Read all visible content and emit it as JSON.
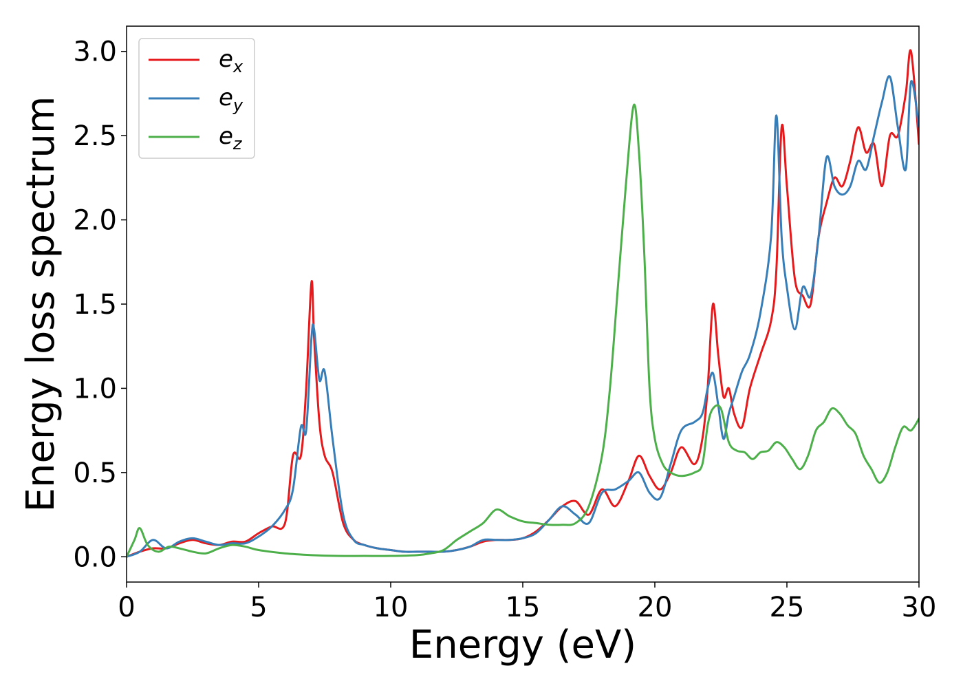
{
  "chart_data": {
    "type": "line",
    "xlabel": "Energy (eV)",
    "ylabel": "Energy loss spectrum",
    "xlim": [
      0,
      30
    ],
    "ylim": [
      -0.15,
      3.15
    ],
    "xticks": [
      0,
      5,
      10,
      15,
      20,
      25,
      30
    ],
    "xtick_labels": [
      "0",
      "5",
      "10",
      "15",
      "20",
      "25",
      "30"
    ],
    "yticks": [
      0.0,
      0.5,
      1.0,
      1.5,
      2.0,
      2.5,
      3.0
    ],
    "ytick_labels": [
      "0.0",
      "0.5",
      "1.0",
      "1.5",
      "2.0",
      "2.5",
      "3.0"
    ],
    "grid": false,
    "legend_position": "top-left",
    "series": [
      {
        "name": "e_x",
        "label_base": "e",
        "label_sub": "x",
        "color": "#e41a1c",
        "x": [
          0,
          0.5,
          1,
          1.5,
          2,
          2.5,
          3,
          3.5,
          4,
          4.5,
          5,
          5.5,
          6,
          6.3,
          6.6,
          6.8,
          7,
          7.1,
          7.3,
          7.5,
          7.8,
          8.2,
          8.6,
          9,
          9.5,
          10,
          10.5,
          11,
          11.5,
          12,
          12.5,
          13,
          13.5,
          14,
          14.5,
          15,
          15.5,
          16,
          16.5,
          17,
          17.5,
          18,
          18.5,
          19,
          19.4,
          19.8,
          20.2,
          20.6,
          21,
          21.5,
          21.8,
          22,
          22.2,
          22.4,
          22.6,
          22.8,
          23,
          23.3,
          23.6,
          24,
          24.4,
          24.6,
          24.8,
          25,
          25.3,
          25.6,
          25.9,
          26.2,
          26.5,
          26.8,
          27.1,
          27.4,
          27.7,
          28,
          28.3,
          28.6,
          28.9,
          29.2,
          29.5,
          29.7,
          30
        ],
        "y": [
          0,
          0.03,
          0.05,
          0.05,
          0.08,
          0.1,
          0.08,
          0.07,
          0.09,
          0.09,
          0.14,
          0.18,
          0.2,
          0.6,
          0.6,
          1.0,
          1.63,
          1.3,
          0.8,
          0.6,
          0.5,
          0.2,
          0.1,
          0.07,
          0.05,
          0.04,
          0.03,
          0.03,
          0.03,
          0.03,
          0.04,
          0.06,
          0.09,
          0.1,
          0.1,
          0.11,
          0.15,
          0.22,
          0.3,
          0.33,
          0.25,
          0.4,
          0.3,
          0.45,
          0.6,
          0.48,
          0.4,
          0.5,
          0.65,
          0.55,
          0.7,
          1.0,
          1.5,
          1.2,
          0.95,
          1.0,
          0.85,
          0.77,
          1.0,
          1.2,
          1.4,
          1.7,
          2.55,
          2.2,
          1.65,
          1.55,
          1.5,
          1.9,
          2.1,
          2.25,
          2.2,
          2.35,
          2.55,
          2.4,
          2.45,
          2.2,
          2.5,
          2.5,
          2.75,
          3.0,
          2.45
        ]
      },
      {
        "name": "e_y",
        "label_base": "e",
        "label_sub": "y",
        "color": "#377eb8",
        "x": [
          0,
          0.5,
          1,
          1.5,
          2,
          2.5,
          3,
          3.5,
          4,
          4.5,
          5,
          5.5,
          6,
          6.3,
          6.6,
          6.8,
          7,
          7.1,
          7.3,
          7.5,
          7.8,
          8.2,
          8.6,
          9,
          9.5,
          10,
          10.5,
          11,
          11.5,
          12,
          12.5,
          13,
          13.5,
          14,
          14.5,
          15,
          15.5,
          16,
          16.5,
          17,
          17.5,
          18,
          18.5,
          19,
          19.4,
          19.8,
          20.2,
          20.6,
          21,
          21.5,
          21.8,
          22,
          22.2,
          22.4,
          22.6,
          22.8,
          23,
          23.3,
          23.6,
          24,
          24.4,
          24.6,
          24.8,
          25,
          25.3,
          25.6,
          25.9,
          26.2,
          26.5,
          26.8,
          27.1,
          27.4,
          27.7,
          28,
          28.3,
          28.6,
          28.9,
          29.2,
          29.5,
          29.7,
          30
        ],
        "y": [
          0,
          0.03,
          0.1,
          0.05,
          0.09,
          0.11,
          0.09,
          0.07,
          0.08,
          0.08,
          0.12,
          0.18,
          0.28,
          0.4,
          0.77,
          0.75,
          1.3,
          1.35,
          1.05,
          1.1,
          0.7,
          0.25,
          0.1,
          0.07,
          0.05,
          0.04,
          0.03,
          0.03,
          0.03,
          0.03,
          0.04,
          0.06,
          0.1,
          0.1,
          0.1,
          0.11,
          0.14,
          0.22,
          0.3,
          0.25,
          0.2,
          0.38,
          0.4,
          0.45,
          0.5,
          0.38,
          0.35,
          0.55,
          0.75,
          0.8,
          0.85,
          1.0,
          1.09,
          0.9,
          0.7,
          0.85,
          0.95,
          1.1,
          1.2,
          1.45,
          1.9,
          2.62,
          1.9,
          1.6,
          1.35,
          1.6,
          1.55,
          1.9,
          2.37,
          2.2,
          2.15,
          2.2,
          2.35,
          2.3,
          2.5,
          2.7,
          2.85,
          2.55,
          2.3,
          2.82,
          2.55
        ]
      },
      {
        "name": "e_z",
        "label_base": "e",
        "label_sub": "z",
        "color": "#4daf4a",
        "x": [
          0,
          0.3,
          0.5,
          0.8,
          1.2,
          1.6,
          2,
          2.5,
          3,
          3.5,
          4,
          4.5,
          5,
          6,
          7,
          8,
          9,
          10,
          11,
          11.5,
          12,
          12.5,
          13,
          13.5,
          14,
          14.5,
          15,
          15.5,
          16,
          16.5,
          17,
          17.5,
          18,
          18.3,
          18.6,
          18.9,
          19.2,
          19.4,
          19.6,
          19.8,
          20,
          20.3,
          20.6,
          21,
          21.5,
          21.8,
          22,
          22.2,
          22.5,
          22.8,
          23.1,
          23.4,
          23.7,
          24,
          24.3,
          24.6,
          24.9,
          25.2,
          25.5,
          25.8,
          26.1,
          26.4,
          26.7,
          27,
          27.3,
          27.6,
          27.9,
          28.2,
          28.5,
          28.8,
          29.1,
          29.4,
          29.7,
          30
        ],
        "y": [
          0,
          0.1,
          0.17,
          0.07,
          0.03,
          0.06,
          0.05,
          0.03,
          0.02,
          0.05,
          0.07,
          0.06,
          0.04,
          0.02,
          0.01,
          0.005,
          0.005,
          0.005,
          0.01,
          0.02,
          0.04,
          0.1,
          0.15,
          0.2,
          0.28,
          0.24,
          0.21,
          0.2,
          0.19,
          0.19,
          0.2,
          0.3,
          0.6,
          1.0,
          1.6,
          2.2,
          2.68,
          2.4,
          1.8,
          1.0,
          0.7,
          0.55,
          0.5,
          0.48,
          0.5,
          0.55,
          0.78,
          0.88,
          0.88,
          0.68,
          0.63,
          0.62,
          0.58,
          0.62,
          0.63,
          0.68,
          0.65,
          0.58,
          0.52,
          0.6,
          0.75,
          0.8,
          0.88,
          0.85,
          0.78,
          0.73,
          0.6,
          0.52,
          0.44,
          0.5,
          0.65,
          0.77,
          0.75,
          0.82
        ]
      }
    ]
  }
}
